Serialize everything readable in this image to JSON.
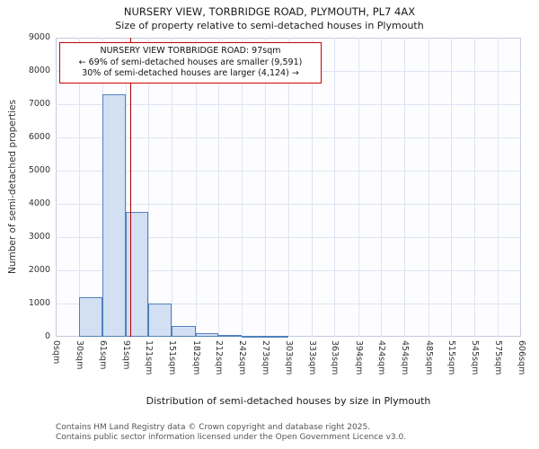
{
  "title": "NURSERY VIEW, TORBRIDGE ROAD, PLYMOUTH, PL7 4AX",
  "subtitle": "Size of property relative to semi-detached houses in Plymouth",
  "annotation": {
    "line1": "NURSERY VIEW TORBRIDGE ROAD: 97sqm",
    "line2": "← 69% of semi-detached houses are smaller (9,591)",
    "line3": "30% of semi-detached houses are larger (4,124) →"
  },
  "footer": {
    "line1": "Contains HM Land Registry data © Crown copyright and database right 2025.",
    "line2": "Contains public sector information licensed under the Open Government Licence v3.0."
  },
  "chart_data": {
    "type": "bar",
    "title": "NURSERY VIEW, TORBRIDGE ROAD, PLYMOUTH, PL7 4AX",
    "subtitle": "Size of property relative to semi-detached houses in Plymouth",
    "xlabel": "Distribution of semi-detached houses by size in Plymouth",
    "ylabel": "Number of semi-detached properties",
    "ylim": [
      0,
      9000
    ],
    "y_ticks": [
      0,
      1000,
      2000,
      3000,
      4000,
      5000,
      6000,
      7000,
      8000,
      9000
    ],
    "bin_edges_sqm": [
      0,
      30,
      61,
      91,
      121,
      151,
      182,
      212,
      242,
      273,
      303,
      333,
      363,
      394,
      424,
      454,
      485,
      515,
      545,
      575,
      606
    ],
    "x_tick_labels": [
      "0sqm",
      "30sqm",
      "61sqm",
      "91sqm",
      "121sqm",
      "151sqm",
      "182sqm",
      "212sqm",
      "242sqm",
      "273sqm",
      "303sqm",
      "333sqm",
      "363sqm",
      "394sqm",
      "424sqm",
      "454sqm",
      "485sqm",
      "515sqm",
      "545sqm",
      "575sqm",
      "606sqm"
    ],
    "values": [
      0,
      1200,
      7300,
      3750,
      1000,
      330,
      120,
      60,
      40,
      30,
      0,
      0,
      0,
      0,
      0,
      0,
      0,
      0,
      0,
      0
    ],
    "marker_value_sqm": 97,
    "grid": true,
    "legend": "none",
    "colors": {
      "bar_fill": "#d3dff3",
      "bar_border": "#4f81bd",
      "marker_line": "#b30000",
      "gridline": "#dde4f2",
      "annotation_border": "#cc0000"
    }
  }
}
